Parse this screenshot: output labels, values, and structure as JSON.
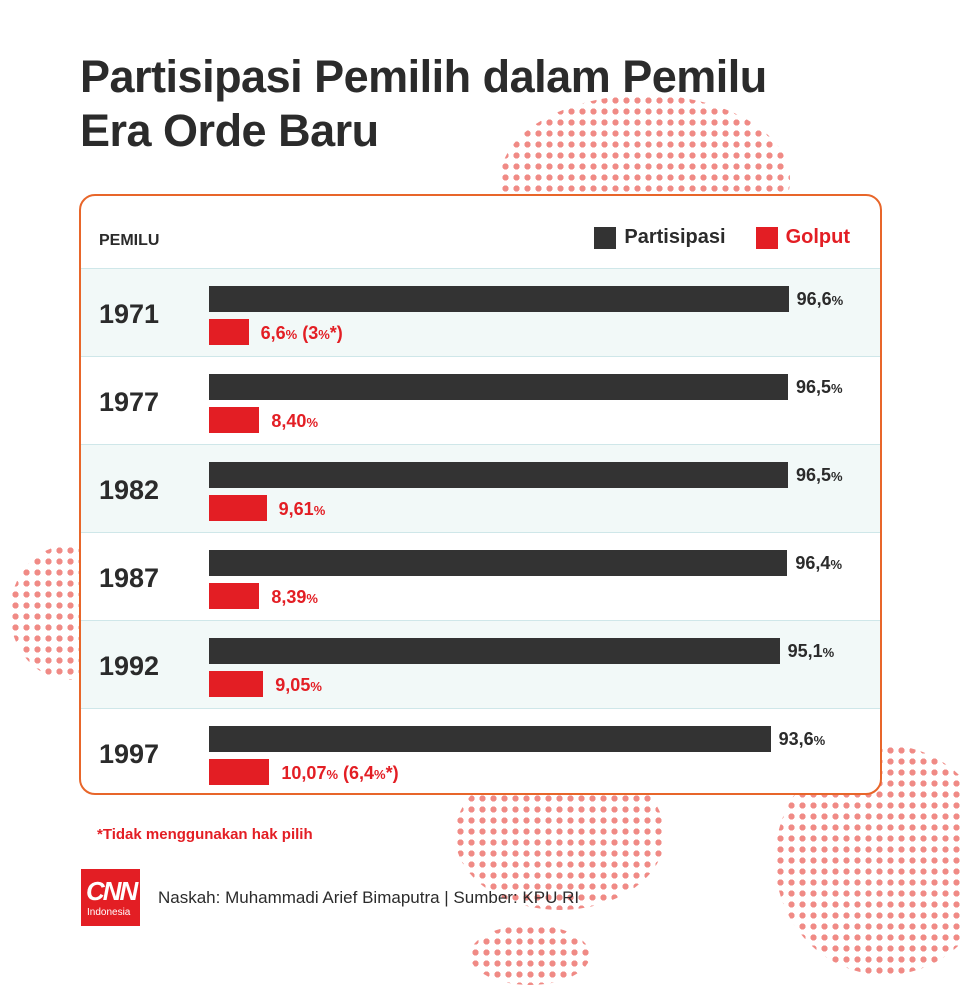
{
  "title_lines": [
    "Partisipasi Pemilih dalam Pemilu",
    "Era Orde Baru"
  ],
  "colors": {
    "partisipasi": "#333333",
    "golput": "#e31e24",
    "border": "#e8662a",
    "row_shade": "#f2f9f8",
    "dots": "#f08a85"
  },
  "chart_data": {
    "type": "bar",
    "orientation": "horizontal",
    "row_header": "PEMILU",
    "categories": [
      "1971",
      "1977",
      "1982",
      "1987",
      "1992",
      "1997"
    ],
    "series": [
      {
        "name": "Partisipasi",
        "values": [
          96.6,
          96.5,
          96.5,
          96.4,
          95.1,
          93.6
        ],
        "labels": [
          "96,6",
          "96,5",
          "96,5",
          "96,4",
          "95,1",
          "93,6"
        ]
      },
      {
        "name": "Golput",
        "values": [
          6.6,
          8.4,
          9.61,
          8.39,
          9.05,
          10.07
        ],
        "labels": [
          "6,6",
          "8,40",
          "9,61",
          "8,39",
          "9,05",
          "10,07"
        ],
        "notes": [
          "3",
          "",
          "",
          "",
          "",
          "6,4"
        ]
      }
    ],
    "unit": "%",
    "legend": "top-right",
    "xlim": [
      0,
      100
    ]
  },
  "footnote": "*Tidak menggunakan hak pilih",
  "logo": {
    "name": "CNN",
    "sub": "Indonesia"
  },
  "credit": "Naskah: Muhammadi Arief Bimaputra | Sumber: KPU RI"
}
